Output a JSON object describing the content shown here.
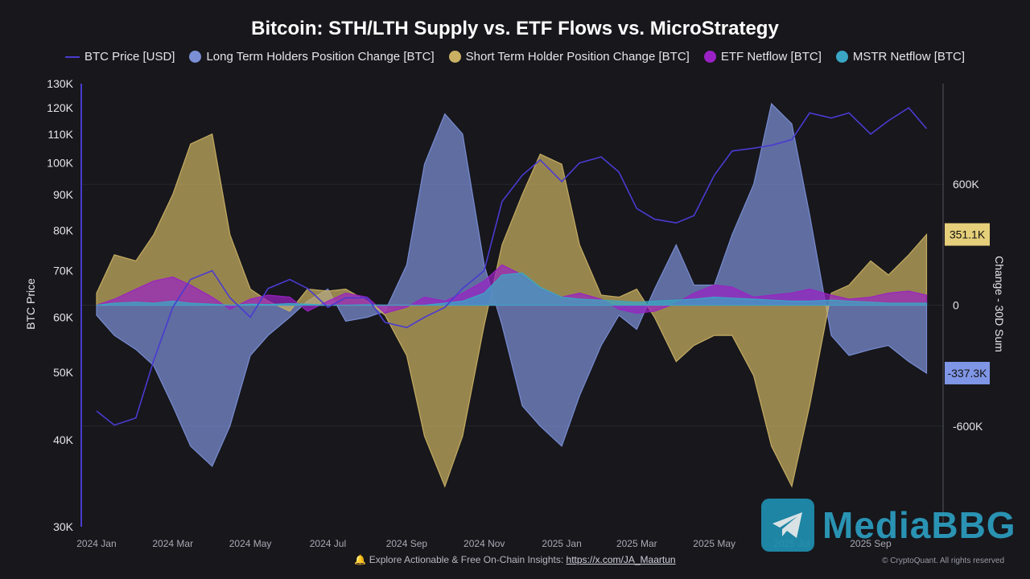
{
  "title": "Bitcoin: STH/LTH Supply vs. ETF Flows vs. MicroStrategy",
  "legend": [
    {
      "label": "BTC Price [USD]",
      "color": "#4a3bd0",
      "kind": "line"
    },
    {
      "label": "Long Term Holders Position Change [BTC]",
      "color": "#7b8fd6",
      "kind": "dot"
    },
    {
      "label": "Short Term Holder Position Change [BTC]",
      "color": "#c9b063",
      "kind": "dot"
    },
    {
      "label": "ETF Netflow [BTC]",
      "color": "#9a22c4",
      "kind": "dot"
    },
    {
      "label": "MSTR Netflow [BTC]",
      "color": "#3aa6c4",
      "kind": "dot"
    }
  ],
  "footer": {
    "icon": "bell-icon",
    "text": "Explore Actionable & Free On-Chain Insights:",
    "link": "https://x.com/JA_Maartun"
  },
  "copyright": "© CryptoQuant. All rights reserved",
  "watermark": {
    "icon": "telegram-icon",
    "text": "MediaBBG"
  },
  "chart_data": {
    "type": "area",
    "title": "Bitcoin: STH/LTH Supply vs. ETF Flows vs. MicroStrategy",
    "ylabel_left": "BTC Price",
    "ylabel_right": "Change - 30D Sum",
    "y_left_scale": "log",
    "y_left_ticks": [
      "30K",
      "40K",
      "50K",
      "60K",
      "70K",
      "80K",
      "90K",
      "100K",
      "110K",
      "120K",
      "130K"
    ],
    "y_left_tick_values": [
      30000,
      40000,
      50000,
      60000,
      70000,
      80000,
      90000,
      100000,
      110000,
      120000,
      130000
    ],
    "ylim_left": [
      30000,
      130000
    ],
    "y_right_ticks": [
      "600K",
      "0",
      "-600K"
    ],
    "y_right_tick_values": [
      600000,
      0,
      -600000
    ],
    "ylim_right": [
      -1100000,
      1100000
    ],
    "x_ticks": [
      "2024 Jan",
      "2024 Mar",
      "2024 May",
      "2024 Jul",
      "2024 Sep",
      "2024 Nov",
      "2025 Jan",
      "2025 Mar",
      "2025 May",
      "2025 Jul",
      "2025 Sep"
    ],
    "last_value_labels": [
      {
        "text": "351.1K",
        "series": "Short Term Holder Position Change [BTC]",
        "value": 351100,
        "color": "#e6cf7a"
      },
      {
        "text": "-337.3K",
        "series": "Long Term Holders Position Change [BTC]",
        "value": -337300,
        "color": "#7f96e6"
      }
    ],
    "x": [
      "2024-01-01",
      "2024-01-15",
      "2024-02-01",
      "2024-02-15",
      "2024-03-01",
      "2024-03-15",
      "2024-04-01",
      "2024-04-15",
      "2024-05-01",
      "2024-05-15",
      "2024-06-01",
      "2024-06-15",
      "2024-07-01",
      "2024-07-15",
      "2024-08-01",
      "2024-08-15",
      "2024-09-01",
      "2024-09-15",
      "2024-10-01",
      "2024-10-15",
      "2024-11-01",
      "2024-11-15",
      "2024-12-01",
      "2024-12-15",
      "2025-01-01",
      "2025-01-15",
      "2025-02-01",
      "2025-02-15",
      "2025-03-01",
      "2025-03-15",
      "2025-04-01",
      "2025-04-15",
      "2025-05-01",
      "2025-05-15",
      "2025-06-01",
      "2025-06-15",
      "2025-07-01",
      "2025-07-15",
      "2025-08-01",
      "2025-08-15",
      "2025-09-01",
      "2025-09-15",
      "2025-10-01",
      "2025-10-15"
    ],
    "series": [
      {
        "name": "BTC Price [USD]",
        "axis": "left",
        "style": "line",
        "color": "#4a3bd0",
        "values": [
          44000,
          42000,
          43000,
          52000,
          62000,
          68000,
          70000,
          64000,
          60000,
          66000,
          68000,
          66000,
          62000,
          64000,
          64000,
          59000,
          58000,
          60000,
          62000,
          66000,
          70000,
          88000,
          96000,
          101000,
          94000,
          100000,
          102000,
          97000,
          86000,
          83000,
          82000,
          84000,
          96000,
          104000,
          105000,
          106000,
          108000,
          118000,
          116000,
          118000,
          110000,
          115000,
          120000,
          112000
        ]
      },
      {
        "name": "Long Term Holders Position Change [BTC]",
        "axis": "right",
        "style": "area",
        "color": "#7b8fd6",
        "values": [
          -50000,
          -150000,
          -220000,
          -300000,
          -500000,
          -700000,
          -800000,
          -600000,
          -250000,
          -150000,
          -60000,
          20000,
          80000,
          -80000,
          -60000,
          -30000,
          200000,
          700000,
          950000,
          850000,
          200000,
          -100000,
          -500000,
          -600000,
          -700000,
          -450000,
          -200000,
          -50000,
          -120000,
          80000,
          300000,
          100000,
          100000,
          350000,
          600000,
          1000000,
          900000,
          450000,
          -150000,
          -250000,
          -220000,
          -200000,
          -280000,
          -337300
        ]
      },
      {
        "name": "Short Term Holder Position Change [BTC]",
        "axis": "right",
        "style": "area",
        "color": "#c9b063",
        "values": [
          60000,
          250000,
          220000,
          350000,
          550000,
          800000,
          850000,
          350000,
          80000,
          20000,
          -30000,
          80000,
          70000,
          80000,
          20000,
          -50000,
          -250000,
          -650000,
          -900000,
          -650000,
          -100000,
          300000,
          550000,
          750000,
          700000,
          300000,
          50000,
          40000,
          80000,
          -60000,
          -280000,
          -200000,
          -150000,
          -150000,
          -350000,
          -700000,
          -900000,
          -500000,
          60000,
          100000,
          220000,
          150000,
          250000,
          351100
        ]
      },
      {
        "name": "ETF Netflow [BTC]",
        "axis": "right",
        "style": "area",
        "color": "#9a22c4",
        "values": [
          0,
          30000,
          80000,
          120000,
          140000,
          100000,
          40000,
          -20000,
          30000,
          50000,
          40000,
          -30000,
          20000,
          60000,
          40000,
          -40000,
          -10000,
          40000,
          20000,
          60000,
          120000,
          200000,
          150000,
          80000,
          40000,
          60000,
          30000,
          -20000,
          -40000,
          -30000,
          10000,
          60000,
          100000,
          90000,
          40000,
          50000,
          60000,
          80000,
          50000,
          30000,
          40000,
          60000,
          70000,
          50000
        ]
      },
      {
        "name": "MSTR Netflow [BTC]",
        "axis": "right",
        "style": "area",
        "color": "#3aa6c4",
        "values": [
          0,
          10000,
          15000,
          10000,
          20000,
          10000,
          5000,
          0,
          5000,
          3000,
          8000,
          5000,
          0,
          0,
          2000,
          0,
          0,
          0,
          10000,
          20000,
          60000,
          150000,
          160000,
          90000,
          40000,
          30000,
          25000,
          20000,
          15000,
          20000,
          25000,
          30000,
          40000,
          35000,
          30000,
          25000,
          20000,
          20000,
          25000,
          20000,
          15000,
          10000,
          10000,
          10000
        ]
      }
    ]
  }
}
